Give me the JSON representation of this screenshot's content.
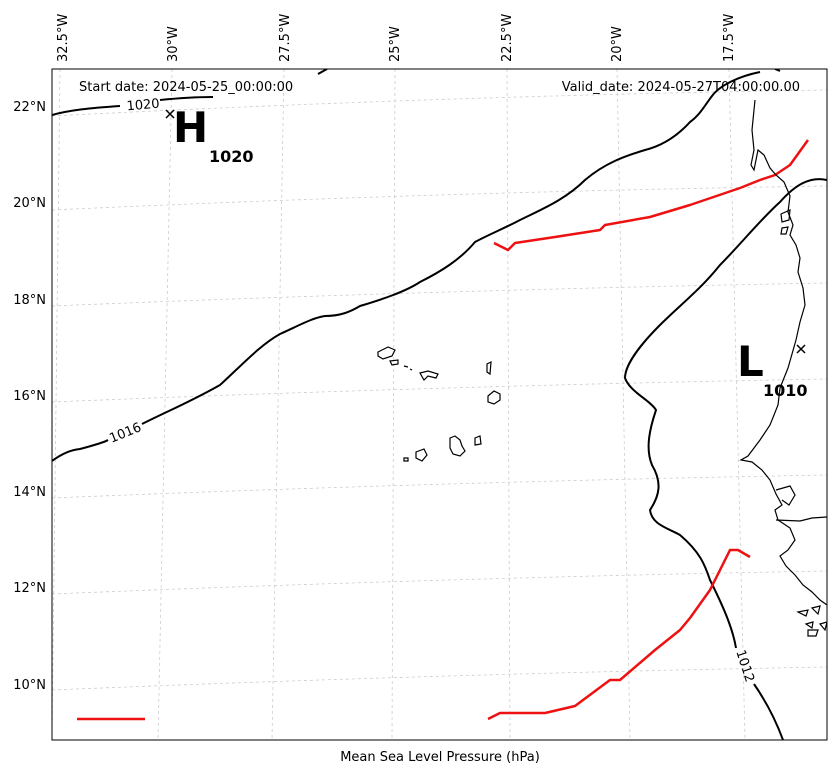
{
  "map": {
    "start_label": "Start date: 2024-05-25_00:00:00",
    "valid_label": "Valid_date: 2024-05-27T04:00:00.00",
    "xlabel": "Mean Sea Level Pressure (hPa)",
    "lon_ticks": [
      "32.5°W",
      "30°W",
      "27.5°W",
      "25°W",
      "22.5°W",
      "20°W",
      "17.5°W"
    ],
    "lat_ticks": [
      "22°N",
      "20°N",
      "18°N",
      "16°N",
      "14°N",
      "12°N",
      "10°N"
    ],
    "high": {
      "letter": "H",
      "value": "1020"
    },
    "low": {
      "letter": "L",
      "value": "1010"
    },
    "isobar_labels": {
      "p1020": "1020",
      "p1016": "1016",
      "p1012": "1012"
    },
    "colors": {
      "isobar": "#000000",
      "front": "#ee1111",
      "grid": "#cccccc",
      "land": "#000000"
    }
  }
}
